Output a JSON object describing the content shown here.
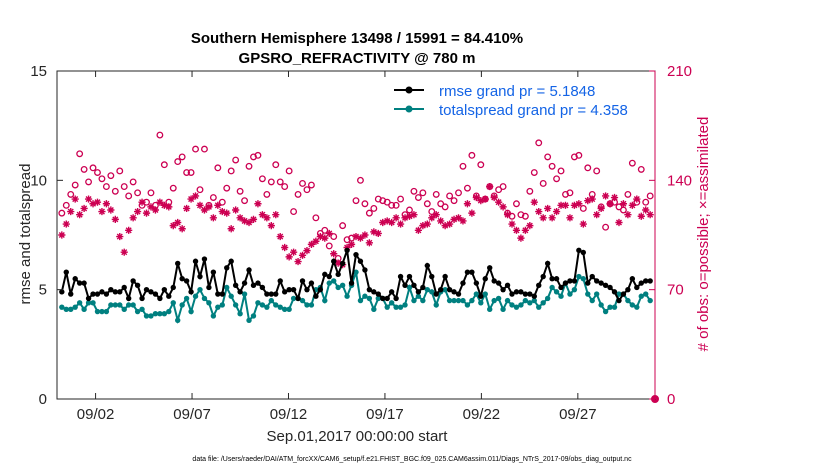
{
  "chart_data": {
    "type": "line",
    "title": "Southern Hemisphere 13498 / 15991 = 84.410%",
    "subtitle": "GPSRO_REFRACTIVITY @ 780 m",
    "ylabel": "rmse and totalspread",
    "y2label": "# of obs: o=possible; ×=assimilated",
    "xlabel": "Sep.01,2017 00:00:00 start",
    "footer": "data file: /Users/raeder/DAI/ATM_forcXX/CAM6_setup/f.e21.FHIST_BGC.f09_025.CAM6assim.011/Diags_NTrS_2017-09/obs_diag_output.nc",
    "ylim": [
      0,
      15
    ],
    "y2lim": [
      0,
      210
    ],
    "xlim": [
      0,
      31
    ],
    "yticks": [
      "0",
      "5",
      "10",
      "15"
    ],
    "y2ticks": [
      "0",
      "70",
      "140",
      "210"
    ],
    "xticks": [
      {
        "pos": 2.0,
        "label": "09/02"
      },
      {
        "pos": 7.0,
        "label": "09/07"
      },
      {
        "pos": 12.0,
        "label": "09/12"
      },
      {
        "pos": 17.0,
        "label": "09/17"
      },
      {
        "pos": 22.0,
        "label": "09/22"
      },
      {
        "pos": 27.0,
        "label": "09/27"
      }
    ],
    "legend": [
      {
        "name": "rmse grand pr = 5.1848",
        "color": "#000000"
      },
      {
        "name": "totalspread grand pr = 4.358",
        "color": "#008080"
      }
    ],
    "colors": {
      "rmse": "#000000",
      "spread": "#008080",
      "obs": "#cc0052",
      "legend_text": "#1464e6"
    },
    "series": [
      {
        "name": "rmse",
        "values": [
          4.9,
          5.8,
          4.8,
          5.5,
          5.3,
          5.3,
          4.6,
          4.8,
          4.8,
          4.9,
          4.8,
          5.0,
          4.9,
          4.9,
          5.1,
          4.6,
          5.4,
          5.2,
          4.6,
          5.0,
          4.9,
          4.8,
          4.6,
          5.0,
          4.7,
          5.1,
          6.2,
          5.5,
          5.4,
          4.9,
          6.3,
          5.6,
          6.4,
          5.1,
          5.8,
          4.8,
          4.8,
          6.0,
          6.3,
          5.2,
          4.9,
          5.3,
          5.9,
          5.2,
          5.3,
          5.1,
          4.8,
          4.8,
          4.8,
          5.4,
          4.9,
          5.0,
          5.0,
          4.6,
          5.4,
          5.0,
          5.3,
          4.7,
          5.0,
          5.7,
          5.6,
          6.3,
          5.7,
          6.2,
          6.8,
          5.3,
          6.6,
          6.3,
          5.9,
          5.0,
          4.9,
          4.8,
          4.6,
          4.6,
          4.9,
          4.6,
          5.6,
          5.2,
          5.6,
          5.2,
          4.9,
          5.1,
          6.1,
          5.6,
          4.8,
          5.0,
          5.6,
          5.0,
          4.9,
          4.8,
          5.3,
          5.8,
          5.8,
          5.3,
          4.7,
          5.5,
          6.0,
          5.4,
          5.3,
          5.0,
          5.2,
          4.8,
          4.9,
          4.9,
          4.8,
          4.8,
          4.7,
          5.2,
          5.6,
          6.2,
          5.5,
          5.5,
          5.1,
          5.3,
          5.4,
          5.4,
          6.8,
          6.7,
          5.3,
          5.6,
          5.4,
          5.3,
          5.2,
          5.1,
          4.9,
          4.5,
          4.8,
          5.0,
          5.5,
          5.1,
          5.3,
          5.4,
          5.4
        ]
      },
      {
        "name": "totalspread",
        "values": [
          4.2,
          4.1,
          4.1,
          4.2,
          4.4,
          4.1,
          4.4,
          4.4,
          4.0,
          4.0,
          4.0,
          4.3,
          4.3,
          4.3,
          4.1,
          4.3,
          4.3,
          4.0,
          4.1,
          3.8,
          3.8,
          3.9,
          3.9,
          3.9,
          4.0,
          4.4,
          3.6,
          4.3,
          4.6,
          4.0,
          4.7,
          5.0,
          4.6,
          4.4,
          3.8,
          4.2,
          4.3,
          5.1,
          4.7,
          4.3,
          3.9,
          4.8,
          3.6,
          3.8,
          4.4,
          4.3,
          4.2,
          4.5,
          4.3,
          4.2,
          4.1,
          4.1,
          4.6,
          4.6,
          4.5,
          4.3,
          4.3,
          5.0,
          5.1,
          4.5,
          5.3,
          5.4,
          5.1,
          5.2,
          4.7,
          5.2,
          5.8,
          4.5,
          4.7,
          4.6,
          4.1,
          4.6,
          4.6,
          4.2,
          4.4,
          4.2,
          4.2,
          4.3,
          5.1,
          4.5,
          4.7,
          4.5,
          5.0,
          4.9,
          4.3,
          4.9,
          5.0,
          4.5,
          4.5,
          4.5,
          4.5,
          4.3,
          4.5,
          4.8,
          4.4,
          4.8,
          4.1,
          4.5,
          4.6,
          4.1,
          4.5,
          4.3,
          4.2,
          4.3,
          4.5,
          4.4,
          4.5,
          4.2,
          4.4,
          4.6,
          5.1,
          4.9,
          4.7,
          5.3,
          4.8,
          5.0,
          5.6,
          5.5,
          4.8,
          4.5,
          4.8,
          4.3,
          4.0,
          4.2,
          4.2,
          4.8,
          4.8,
          4.5,
          4.3,
          4.2,
          4.7,
          4.8,
          4.5
        ]
      },
      {
        "name": "possible obs",
        "marker": "o",
        "values": [
          119,
          124,
          131,
          137,
          157,
          147,
          139,
          148,
          145,
          141,
          136,
          143,
          133,
          146,
          136,
          130,
          139,
          132,
          124,
          126,
          132,
          124,
          169,
          150,
          126,
          135,
          152,
          155,
          145,
          145,
          160,
          134,
          160,
          124,
          129,
          148,
          126,
          135,
          146,
          153,
          133,
          127,
          149,
          155,
          156,
          141,
          131,
          139,
          150,
          139,
          136,
          146,
          120,
          131,
          138,
          134,
          137,
          116,
          106,
          108,
          98,
          104,
          90,
          111,
          102,
          103,
          127,
          140,
          125,
          119,
          122,
          128,
          127,
          126,
          124,
          124,
          128,
          118,
          121,
          133,
          129,
          132,
          125,
          120,
          131,
          125,
          123,
          130,
          127,
          132,
          149,
          135,
          156,
          130,
          150,
          128,
          136,
          130,
          134,
          136,
          119,
          117,
          125,
          118,
          117,
          133,
          145,
          164,
          138,
          155,
          149,
          141,
          146,
          131,
          132,
          155,
          156,
          122,
          148,
          131,
          146,
          123,
          110,
          125,
          126,
          123,
          121,
          131,
          151,
          126,
          147,
          126,
          130
        ]
      },
      {
        "name": "assimilated obs",
        "marker": "x",
        "values": [
          105,
          112,
          120,
          128,
          118,
          122,
          128,
          125,
          126,
          120,
          125,
          121,
          115,
          104,
          94,
          108,
          116,
          120,
          126,
          119,
          123,
          121,
          126,
          124,
          123,
          111,
          113,
          109,
          122,
          128,
          130,
          124,
          121,
          123,
          116,
          124,
          120,
          119,
          109,
          121,
          116,
          114,
          113,
          115,
          125,
          118,
          116,
          111,
          118,
          104,
          97,
          91,
          94,
          88,
          92,
          95,
          99,
          101,
          104,
          103,
          106,
          93,
          87,
          86,
          97,
          99,
          104,
          103,
          105,
          100,
          107,
          106,
          113,
          114,
          113,
          116,
          112,
          116,
          117,
          118,
          108,
          111,
          112,
          116,
          118,
          114,
          111,
          112,
          115,
          116,
          114,
          125,
          119,
          129,
          127,
          128,
          136,
          129,
          126,
          123,
          118,
          112,
          108,
          103,
          108,
          111,
          126,
          120,
          116,
          122,
          116,
          120,
          124,
          124,
          116,
          124,
          125,
          112,
          127,
          128,
          118,
          122,
          130,
          125,
          129,
          113,
          125,
          118,
          124,
          128,
          117,
          121,
          118
        ]
      }
    ]
  }
}
